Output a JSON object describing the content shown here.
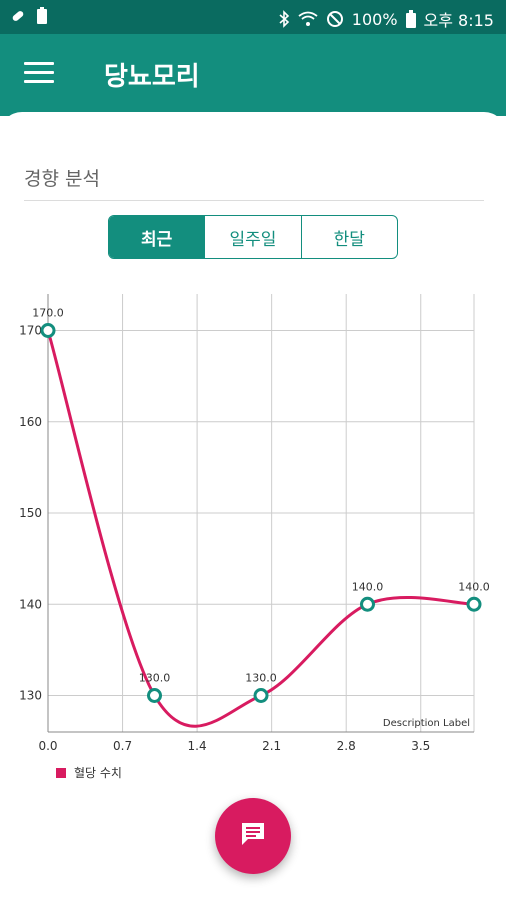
{
  "status_bar": {
    "icons_left": [
      "pill-icon",
      "battery-saver-icon"
    ],
    "icons_right": [
      "bluetooth-icon",
      "wifi-icon",
      "do-not-disturb-icon",
      "battery-icon"
    ],
    "battery": "100%",
    "time": "오후 8:15"
  },
  "app_bar": {
    "title": "당뇨모리"
  },
  "analysis": {
    "section_title": "경향 분석",
    "tabs": [
      {
        "label": "최근",
        "active": true
      },
      {
        "label": "일주일",
        "active": false
      },
      {
        "label": "한달",
        "active": false
      }
    ]
  },
  "chart_data": {
    "type": "line",
    "x_ticks": [
      "0.0",
      "0.7",
      "1.4",
      "2.1",
      "2.8",
      "3.5"
    ],
    "y_ticks": [
      "130",
      "140",
      "150",
      "160",
      "170"
    ],
    "series": [
      {
        "name": "혈당 수치",
        "x": [
          0,
          1,
          2,
          3,
          4
        ],
        "y": [
          170,
          130,
          130,
          140,
          140
        ],
        "value_labels": [
          "170.0",
          "130.0",
          "130.0",
          "140.0",
          "140.0"
        ],
        "color": "#d81b60",
        "point_color": "#138e7e"
      }
    ],
    "description": "Description Label",
    "xlim": [
      0,
      4
    ],
    "ylim": [
      126,
      174
    ],
    "grid": true,
    "legend_position": "bottom-left"
  },
  "legend": {
    "label": "혈당 수치"
  },
  "fab": {
    "icon": "message-icon"
  },
  "colors": {
    "primary": "#138e7e",
    "primary_dark": "#0a6b60",
    "accent": "#d81b60"
  }
}
